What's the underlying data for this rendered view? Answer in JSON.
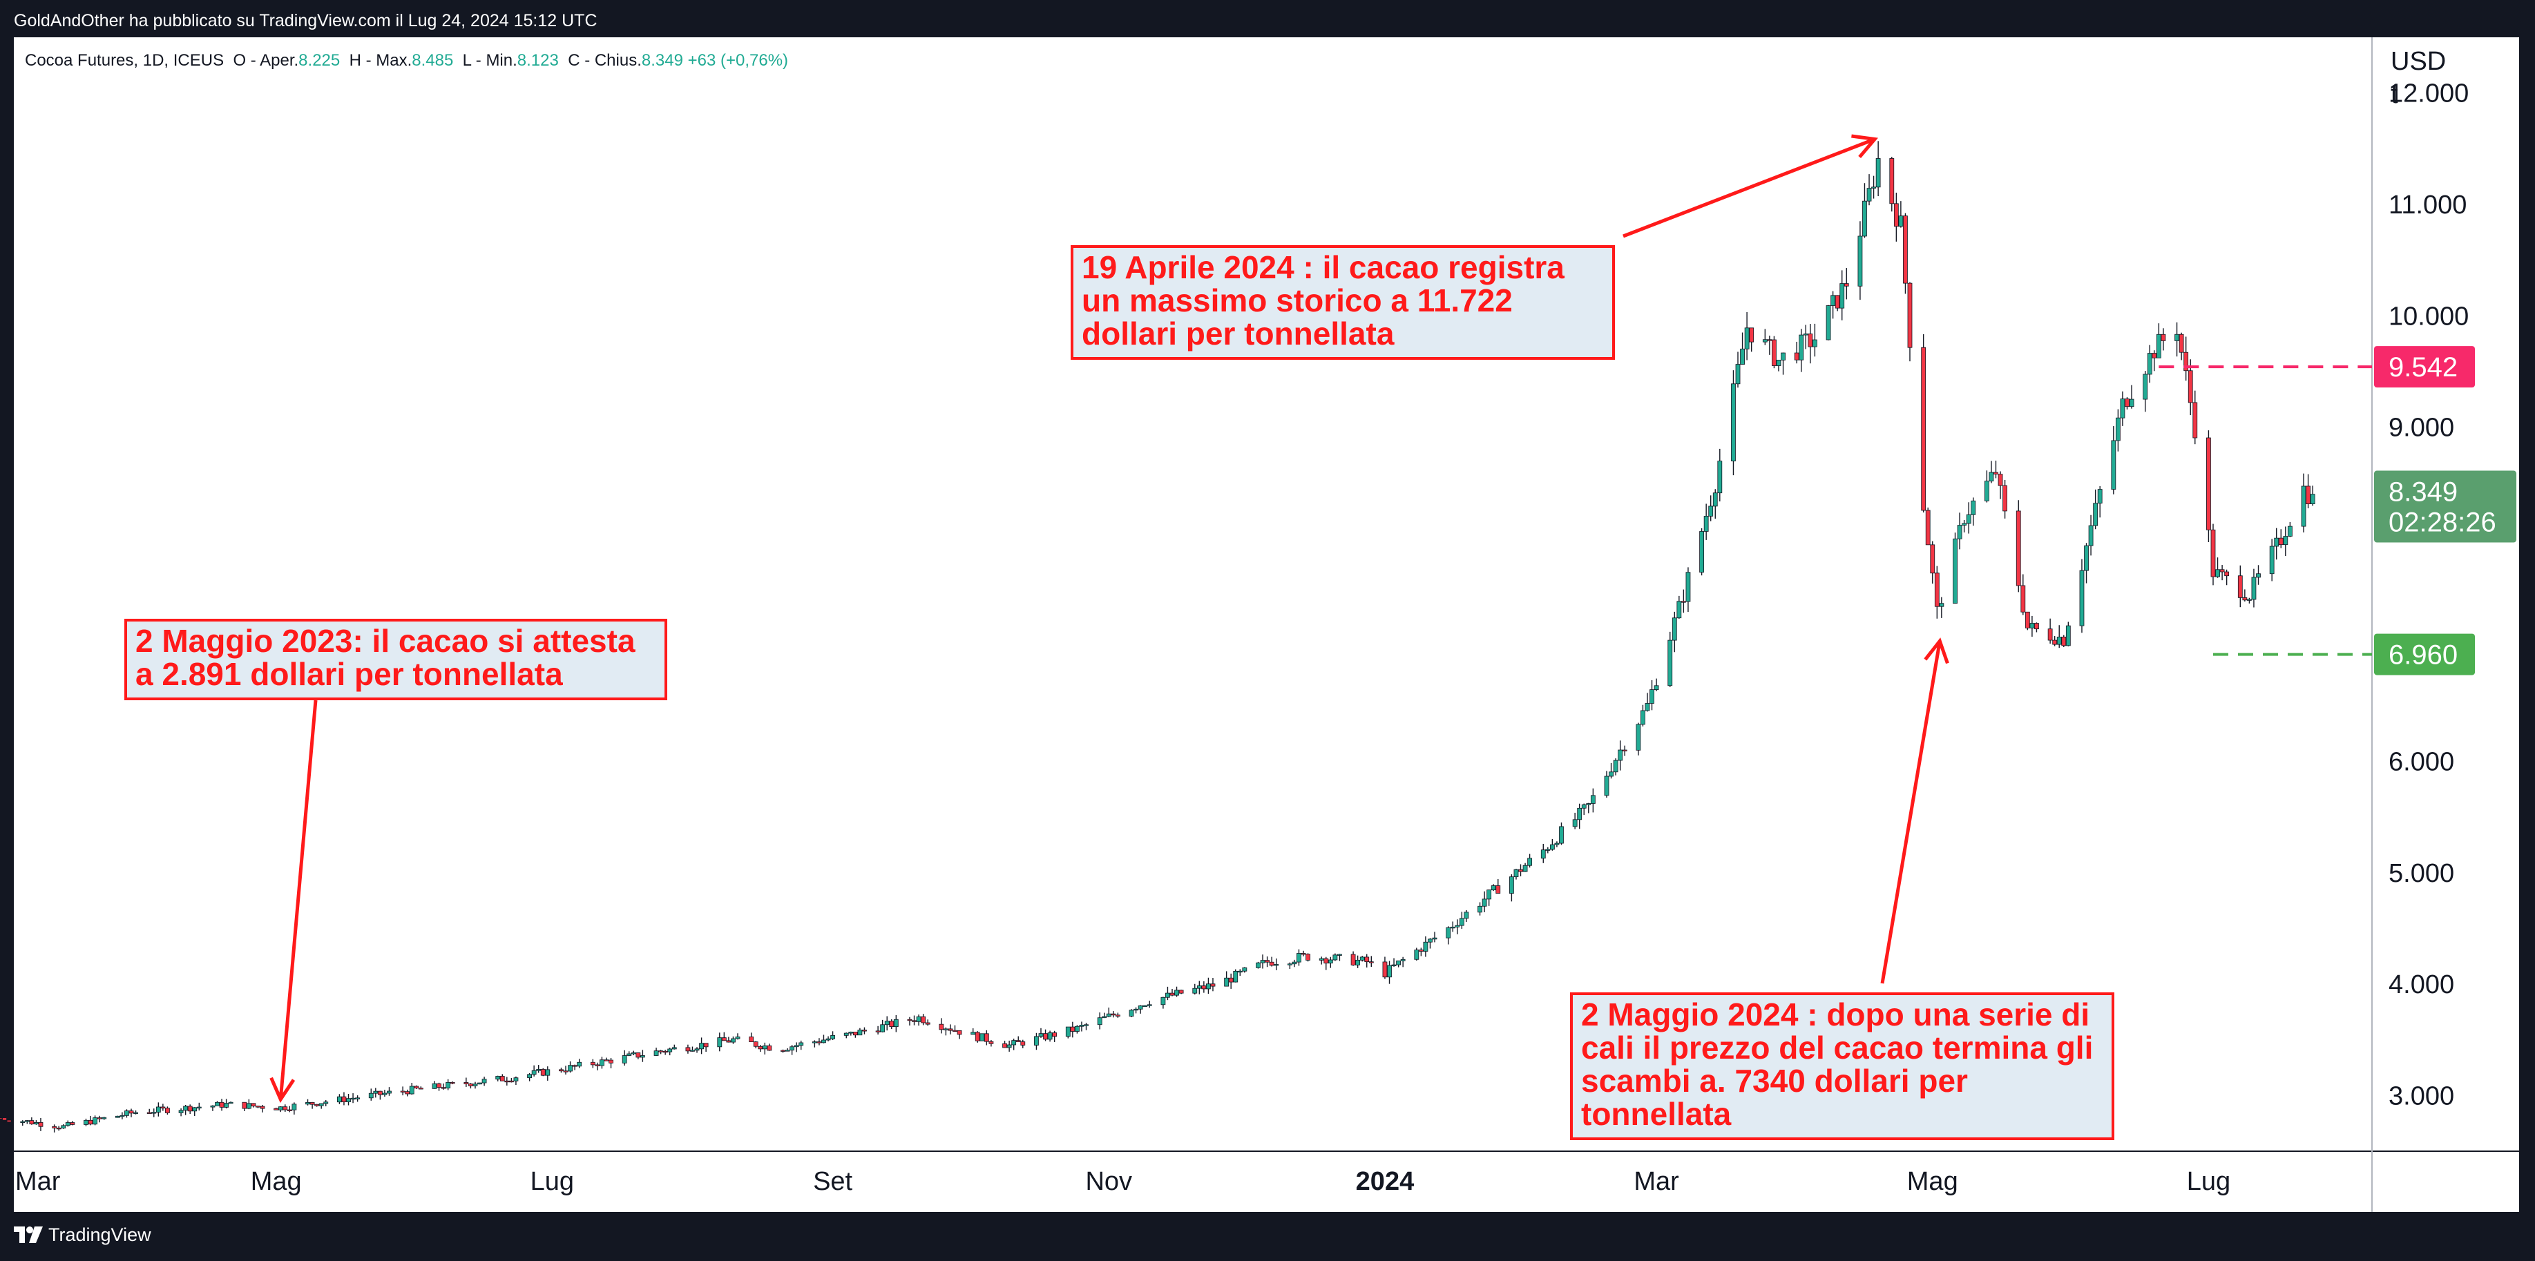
{
  "header": {
    "publish_line": "GoldAndOther ha pubblicato su TradingView.com il Lug 24, 2024 15:12 UTC"
  },
  "legend": {
    "symbol": "Cocoa Futures, 1D, ICEUS",
    "open_label": "O - Aper.",
    "open_value": "8.225",
    "high_label": "H - Max.",
    "high_value": "8.485",
    "low_label": "L - Min.",
    "low_value": "8.123",
    "close_label": "C - Chius.",
    "close_value": "8.349",
    "change": "+63 (+0,76%)"
  },
  "footer": {
    "brand": "TradingView"
  },
  "annotations": {
    "a1": "2 Maggio 2023: il cacao si attesta a  2.891 dollari per tonnellata",
    "a2": "19 Aprile 2024 : il cacao registra un massimo storico a 11.722 dollari per tonnellata",
    "a3": "2 Maggio 2024 : dopo una serie di cali il prezzo del cacao termina gli scambi a. 7340 dollari per tonnellata"
  },
  "price_labels": {
    "upper_level": "9.542",
    "current_price": "8.349",
    "countdown": "02:28:26",
    "lower_level": "6.960"
  },
  "colors": {
    "background": "#ffffff",
    "up": "#22ab94",
    "down": "#f23645",
    "annotation_red": "#ff1a1a",
    "annotation_bg": "#e1ebf3",
    "upper_level": "#f7296a",
    "lower_level": "#4caf50",
    "current_price_bg": "#5a9f6e"
  },
  "chart_data": {
    "type": "candlestick",
    "title": "Cocoa Futures, 1D, ICEUS",
    "ylabel": "USD t",
    "y_axis_position": "right",
    "ylim": [
      2500,
      12500
    ],
    "xlim": [
      "2023-03-01",
      "2024-07-31"
    ],
    "grid": false,
    "x_tick_labels": [
      {
        "label": "Mar",
        "date": "2023-03-01"
      },
      {
        "label": "Mag",
        "date": "2023-05-01"
      },
      {
        "label": "Lug",
        "date": "2023-07-01"
      },
      {
        "label": "Set",
        "date": "2023-09-01"
      },
      {
        "label": "Nov",
        "date": "2023-11-01"
      },
      {
        "label": "2024",
        "date": "2024-01-01",
        "bold": true
      },
      {
        "label": "Mar",
        "date": "2024-03-01"
      },
      {
        "label": "Mag",
        "date": "2024-05-01"
      },
      {
        "label": "Lug",
        "date": "2024-07-01"
      }
    ],
    "y_tick_labels": [
      {
        "label": "12.000",
        "value": 12000
      },
      {
        "label": "11.000",
        "value": 11000
      },
      {
        "label": "10.000",
        "value": 10000
      },
      {
        "label": "9.000",
        "value": 9000
      },
      {
        "label": "6.000",
        "value": 6000
      },
      {
        "label": "5.000",
        "value": 5000
      },
      {
        "label": "4.000",
        "value": 4000
      },
      {
        "label": "3.000",
        "value": 3000
      }
    ],
    "price_keypoints": [
      [
        "2023-03-01",
        2800
      ],
      [
        "2023-03-15",
        2720
      ],
      [
        "2023-03-31",
        2850
      ],
      [
        "2023-04-20",
        2920
      ],
      [
        "2023-05-02",
        2891
      ],
      [
        "2023-05-31",
        3050
      ],
      [
        "2023-06-20",
        3150
      ],
      [
        "2023-07-05",
        3250
      ],
      [
        "2023-07-25",
        3400
      ],
      [
        "2023-08-10",
        3500
      ],
      [
        "2023-08-20",
        3420
      ],
      [
        "2023-09-05",
        3550
      ],
      [
        "2023-09-20",
        3700
      ],
      [
        "2023-10-01",
        3550
      ],
      [
        "2023-10-10",
        3450
      ],
      [
        "2023-10-25",
        3600
      ],
      [
        "2023-11-10",
        3850
      ],
      [
        "2023-11-25",
        4000
      ],
      [
        "2023-12-06",
        4200
      ],
      [
        "2023-12-15",
        4250
      ],
      [
        "2023-12-28",
        4200
      ],
      [
        "2024-01-01",
        4100
      ],
      [
        "2024-01-15",
        4500
      ],
      [
        "2024-02-05",
        5200
      ],
      [
        "2024-02-15",
        5600
      ],
      [
        "2024-02-22",
        6100
      ],
      [
        "2024-02-28",
        6500
      ],
      [
        "2024-03-07",
        7500
      ],
      [
        "2024-03-14",
        8500
      ],
      [
        "2024-03-21",
        9900
      ],
      [
        "2024-03-28",
        9600
      ],
      [
        "2024-04-05",
        9800
      ],
      [
        "2024-04-12",
        10300
      ],
      [
        "2024-04-19",
        11400
      ],
      [
        "2024-04-24",
        10800
      ],
      [
        "2024-04-29",
        8300
      ],
      [
        "2024-05-02",
        7340
      ],
      [
        "2024-05-08",
        8200
      ],
      [
        "2024-05-15",
        8600
      ],
      [
        "2024-05-22",
        7200
      ],
      [
        "2024-05-30",
        7100
      ],
      [
        "2024-06-05",
        8100
      ],
      [
        "2024-06-12",
        9200
      ],
      [
        "2024-06-19",
        9700
      ],
      [
        "2024-06-24",
        9900
      ],
      [
        "2024-06-28",
        9000
      ],
      [
        "2024-07-02",
        7700
      ],
      [
        "2024-07-10",
        7500
      ],
      [
        "2024-07-17",
        8000
      ],
      [
        "2024-07-22",
        8450
      ],
      [
        "2024-07-24",
        8349
      ]
    ],
    "annotated_points": [
      {
        "date": "2023-05-02",
        "value": 2891
      },
      {
        "date": "2024-04-19",
        "value": 11722
      },
      {
        "date": "2024-05-02",
        "value": 7340
      }
    ],
    "horizontal_levels": [
      {
        "value": 9542,
        "style": "dashed",
        "color": "#f7296a",
        "from": "2024-06-20"
      },
      {
        "value": 6960,
        "style": "dashed",
        "color": "#4caf50",
        "from": "2024-07-02"
      }
    ],
    "last_ohlc": {
      "open": 8225,
      "high": 8485,
      "low": 8123,
      "close": 8349,
      "change": 63,
      "change_pct": 0.76
    }
  }
}
